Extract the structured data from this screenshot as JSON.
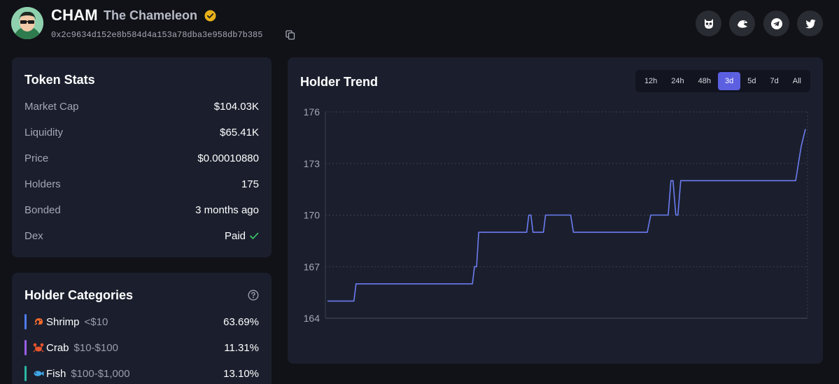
{
  "header": {
    "symbol": "CHAM",
    "name": "The Chameleon",
    "address": "0x2c9634d152e8b584d4a153a78dba3e958db7b385",
    "verified_icon": "verified-badge-icon",
    "verified_color": "#e9b11a",
    "social_icons": [
      "owl-icon",
      "eagle-icon",
      "telegram-icon",
      "twitter-icon"
    ]
  },
  "token_stats": {
    "title": "Token Stats",
    "rows": [
      {
        "label": "Market Cap",
        "value": "$104.03K"
      },
      {
        "label": "Liquidity",
        "value": "$65.41K"
      },
      {
        "label": "Price",
        "value": "$0.00010880"
      },
      {
        "label": "Holders",
        "value": "175"
      },
      {
        "label": "Bonded",
        "value": "3 months ago"
      },
      {
        "label": "Dex",
        "value": "Paid"
      }
    ],
    "dex_check_color": "#3ccf6e"
  },
  "holder_categories": {
    "title": "Holder Categories",
    "items": [
      {
        "name": "Shrimp",
        "range": "<$10",
        "percent": "63.69%",
        "color": "#4f7cf0",
        "icon": "shrimp-icon"
      },
      {
        "name": "Crab",
        "range": "$10-$100",
        "percent": "11.31%",
        "color": "#9b5de5",
        "icon": "crab-icon"
      },
      {
        "name": "Fish",
        "range": "$100-$1,000",
        "percent": "13.10%",
        "color": "#2bb7a5",
        "icon": "fish-icon"
      }
    ]
  },
  "holder_trend": {
    "title": "Holder Trend",
    "tabs": [
      "12h",
      "24h",
      "48h",
      "3d",
      "5d",
      "7d",
      "All"
    ],
    "active_tab": "3d"
  },
  "chart_data": {
    "type": "line",
    "title": "Holder Trend",
    "xlabel": "",
    "ylabel": "",
    "ylim": [
      164,
      176
    ],
    "yticks": [
      164,
      167,
      170,
      173,
      176
    ],
    "grid": true,
    "line_color": "#6b7cf0",
    "x": [
      0,
      38,
      41,
      44,
      208,
      211,
      214,
      217,
      219,
      222,
      286,
      289,
      292,
      295,
      298,
      301,
      310,
      313,
      316,
      349,
      353,
      459,
      464,
      489,
      493,
      496,
      500,
      503,
      507,
      511,
      672,
      676,
      680,
      686
    ],
    "values": [
      165,
      165,
      166,
      166,
      166,
      167,
      167,
      169,
      169,
      169,
      169,
      170,
      170,
      169,
      169,
      169,
      169,
      170,
      170,
      170,
      169,
      169,
      170,
      170,
      172,
      172,
      170,
      170,
      172,
      172,
      172,
      173,
      174,
      175
    ]
  }
}
